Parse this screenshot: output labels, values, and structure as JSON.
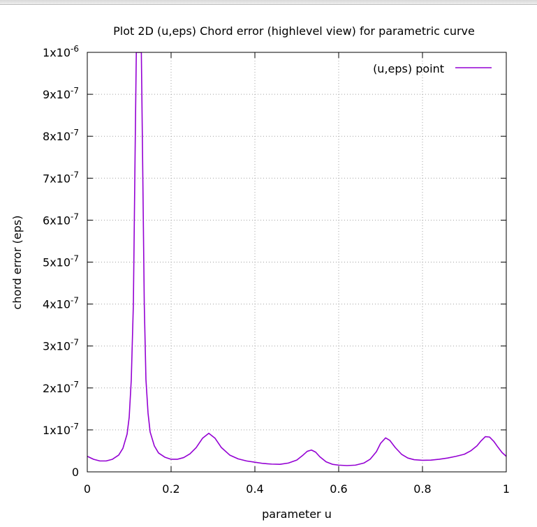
{
  "chart_data": {
    "type": "line",
    "title": "Plot 2D (u,eps) Chord error (highlevel view) for parametric curve",
    "xlabel": "parameter u",
    "ylabel": "chord error (eps)",
    "xlim": [
      0,
      1
    ],
    "ylim": [
      0,
      1e-06
    ],
    "grid": true,
    "legend_position": "top-right",
    "x_ticks": [
      {
        "value": 0,
        "label": "0"
      },
      {
        "value": 0.2,
        "label": "0.2"
      },
      {
        "value": 0.4,
        "label": "0.4"
      },
      {
        "value": 0.6,
        "label": "0.6"
      },
      {
        "value": 0.8,
        "label": "0.8"
      },
      {
        "value": 1,
        "label": "1"
      }
    ],
    "y_ticks": [
      {
        "value": 0,
        "mantissa": "0",
        "exp": ""
      },
      {
        "value": 1e-07,
        "mantissa": "1x10",
        "exp": "-7"
      },
      {
        "value": 2e-07,
        "mantissa": "2x10",
        "exp": "-7"
      },
      {
        "value": 3e-07,
        "mantissa": "3x10",
        "exp": "-7"
      },
      {
        "value": 4e-07,
        "mantissa": "4x10",
        "exp": "-7"
      },
      {
        "value": 5e-07,
        "mantissa": "5x10",
        "exp": "-7"
      },
      {
        "value": 6e-07,
        "mantissa": "6x10",
        "exp": "-7"
      },
      {
        "value": 7e-07,
        "mantissa": "7x10",
        "exp": "-7"
      },
      {
        "value": 8e-07,
        "mantissa": "8x10",
        "exp": "-7"
      },
      {
        "value": 9e-07,
        "mantissa": "9x10",
        "exp": "-7"
      },
      {
        "value": 1e-06,
        "mantissa": "1x10",
        "exp": "-6"
      }
    ],
    "series": [
      {
        "name": "(u,eps) point",
        "color": "#9400d3",
        "points": [
          [
            0.0,
            3.7e-08
          ],
          [
            0.015,
            3e-08
          ],
          [
            0.03,
            2.6e-08
          ],
          [
            0.045,
            2.6e-08
          ],
          [
            0.06,
            3e-08
          ],
          [
            0.075,
            4e-08
          ],
          [
            0.085,
            5.6e-08
          ],
          [
            0.095,
            9e-08
          ],
          [
            0.1,
            1.3e-07
          ],
          [
            0.105,
            2.2e-07
          ],
          [
            0.11,
            4e-07
          ],
          [
            0.114,
            7.5e-07
          ],
          [
            0.117,
            1e-06
          ],
          [
            0.129,
            1e-06
          ],
          [
            0.132,
            7.5e-07
          ],
          [
            0.136,
            4e-07
          ],
          [
            0.14,
            2.2e-07
          ],
          [
            0.145,
            1.4e-07
          ],
          [
            0.15,
            9.5e-08
          ],
          [
            0.16,
            6.2e-08
          ],
          [
            0.17,
            4.5e-08
          ],
          [
            0.185,
            3.5e-08
          ],
          [
            0.2,
            3e-08
          ],
          [
            0.215,
            3e-08
          ],
          [
            0.23,
            3.4e-08
          ],
          [
            0.245,
            4.3e-08
          ],
          [
            0.26,
            5.8e-08
          ],
          [
            0.275,
            8e-08
          ],
          [
            0.29,
            9.2e-08
          ],
          [
            0.305,
            8e-08
          ],
          [
            0.32,
            5.8e-08
          ],
          [
            0.34,
            4e-08
          ],
          [
            0.36,
            3.1e-08
          ],
          [
            0.38,
            2.6e-08
          ],
          [
            0.4,
            2.3e-08
          ],
          [
            0.42,
            2e-08
          ],
          [
            0.44,
            1.85e-08
          ],
          [
            0.46,
            1.8e-08
          ],
          [
            0.48,
            2.1e-08
          ],
          [
            0.5,
            2.8e-08
          ],
          [
            0.515,
            4e-08
          ],
          [
            0.525,
            4.9e-08
          ],
          [
            0.535,
            5.2e-08
          ],
          [
            0.545,
            4.7e-08
          ],
          [
            0.555,
            3.6e-08
          ],
          [
            0.57,
            2.4e-08
          ],
          [
            0.585,
            1.8e-08
          ],
          [
            0.6,
            1.6e-08
          ],
          [
            0.62,
            1.5e-08
          ],
          [
            0.64,
            1.6e-08
          ],
          [
            0.66,
            2.1e-08
          ],
          [
            0.675,
            3e-08
          ],
          [
            0.69,
            4.8e-08
          ],
          [
            0.7,
            6.8e-08
          ],
          [
            0.712,
            8.1e-08
          ],
          [
            0.722,
            7.5e-08
          ],
          [
            0.735,
            5.8e-08
          ],
          [
            0.75,
            4.2e-08
          ],
          [
            0.765,
            3.3e-08
          ],
          [
            0.78,
            2.9e-08
          ],
          [
            0.8,
            2.75e-08
          ],
          [
            0.82,
            2.8e-08
          ],
          [
            0.84,
            3e-08
          ],
          [
            0.86,
            3.3e-08
          ],
          [
            0.88,
            3.7e-08
          ],
          [
            0.9,
            4.2e-08
          ],
          [
            0.915,
            5e-08
          ],
          [
            0.93,
            6.2e-08
          ],
          [
            0.94,
            7.4e-08
          ],
          [
            0.95,
            8.4e-08
          ],
          [
            0.96,
            8.3e-08
          ],
          [
            0.97,
            7.3e-08
          ],
          [
            0.98,
            5.9e-08
          ],
          [
            0.99,
            4.6e-08
          ],
          [
            1.0,
            3.7e-08
          ]
        ]
      }
    ]
  }
}
